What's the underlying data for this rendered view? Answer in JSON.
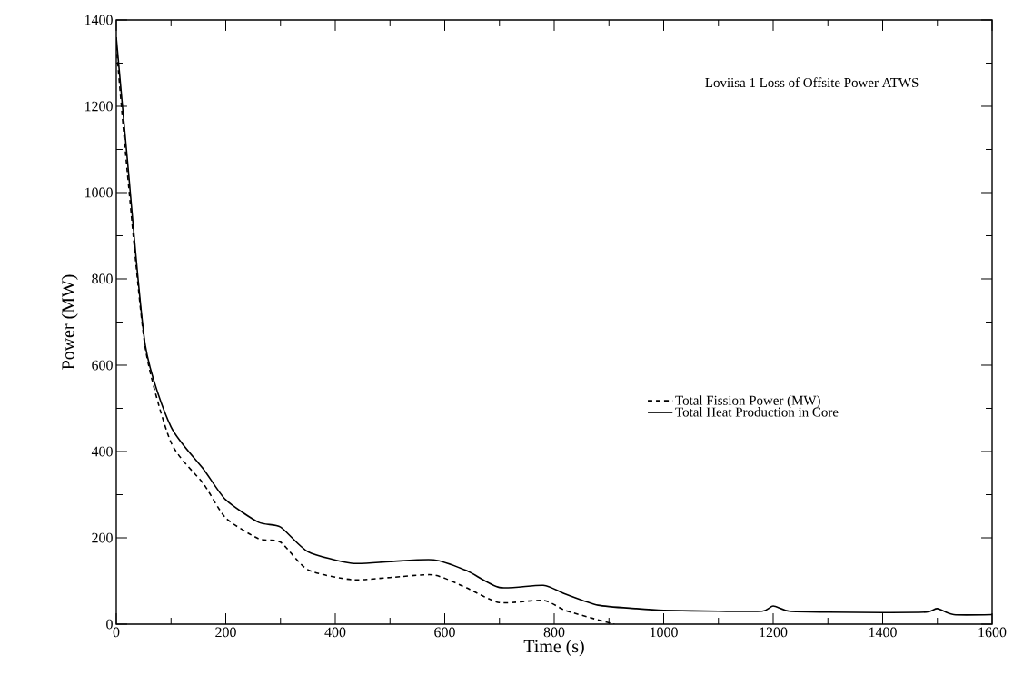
{
  "chart_data": {
    "type": "line",
    "xlabel": "Time (s)",
    "ylabel": "Power (MW)",
    "annotations": [
      "Loviisa 1   Loss of Offsite Power ATWS"
    ],
    "xlim": [
      0,
      1600
    ],
    "ylim": [
      0,
      1400
    ],
    "xticks": [
      0,
      200,
      400,
      600,
      800,
      1000,
      1200,
      1400,
      1600
    ],
    "yticks": [
      0,
      200,
      400,
      600,
      800,
      1000,
      1200,
      1400
    ],
    "legend": "right",
    "grid": false,
    "marker": "none",
    "series": [
      {
        "name": "Total Fission Power (MW)",
        "color": "#000000",
        "line_style": "dashed",
        "x": [
          0,
          20,
          53,
          100,
          160,
          200,
          260,
          300,
          350,
          430,
          500,
          580,
          640,
          700,
          780,
          820,
          880,
          910
        ],
        "values": [
          1340,
          1050,
          640,
          421,
          324,
          246,
          198,
          190,
          126,
          103,
          108,
          114,
          84,
          50,
          55,
          32,
          10,
          0
        ]
      },
      {
        "name": "Total Heat Production in Core",
        "color": "#000000",
        "line_style": "solid",
        "x": [
          0,
          20,
          53,
          100,
          160,
          200,
          260,
          300,
          350,
          430,
          500,
          580,
          640,
          700,
          780,
          820,
          880,
          950,
          1000,
          1100,
          1180,
          1200,
          1230,
          1300,
          1400,
          1480,
          1500,
          1530,
          1600
        ],
        "values": [
          1360,
          1080,
          646,
          457,
          358,
          288,
          236,
          225,
          168,
          141,
          145,
          149,
          124,
          85,
          90,
          70,
          44,
          36,
          32,
          30,
          30,
          42,
          30,
          28,
          27,
          28,
          36,
          22,
          22
        ]
      }
    ]
  }
}
